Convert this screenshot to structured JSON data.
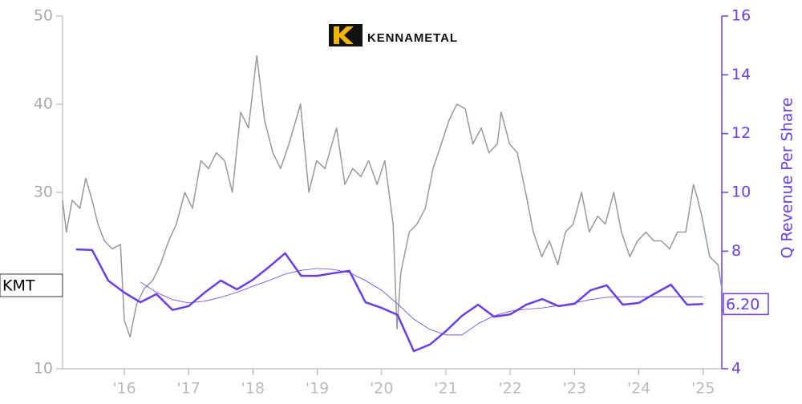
{
  "chart_data": {
    "type": "line",
    "logo_text": "KENNAMETAL",
    "ticker": "KMT",
    "y2label": "Q Revenue Per Share",
    "xlim": [
      2015.04,
      2025.29
    ],
    "xticks": [
      {
        "value": 2016,
        "label": "'16"
      },
      {
        "value": 2017,
        "label": "'17"
      },
      {
        "value": 2018,
        "label": "'18"
      },
      {
        "value": 2019,
        "label": "'19"
      },
      {
        "value": 2020,
        "label": "'20"
      },
      {
        "value": 2021,
        "label": "'21"
      },
      {
        "value": 2022,
        "label": "'22"
      },
      {
        "value": 2023,
        "label": "'23"
      },
      {
        "value": 2024,
        "label": "'24"
      },
      {
        "value": 2025,
        "label": "'25"
      }
    ],
    "ylim": [
      10,
      50
    ],
    "yticks": [
      10,
      20,
      30,
      40,
      50
    ],
    "y2lim": [
      4,
      16
    ],
    "y2ticks": [
      4,
      6,
      8,
      10,
      12,
      14,
      16
    ],
    "series": [
      {
        "color": "#999999",
        "width": 1.5,
        "axis": "y",
        "x": [
          2015.04,
          2015.1,
          2015.19,
          2015.31,
          2015.4,
          2015.5,
          2015.59,
          2015.69,
          2015.81,
          2015.94,
          2016.0,
          2016.09,
          2016.19,
          2016.31,
          2016.44,
          2016.56,
          2016.69,
          2016.81,
          2016.94,
          2017.06,
          2017.19,
          2017.31,
          2017.43,
          2017.56,
          2017.68,
          2017.81,
          2017.93,
          2018.06,
          2018.18,
          2018.31,
          2018.43,
          2018.56,
          2018.74,
          2018.87,
          2018.99,
          2019.12,
          2019.3,
          2019.43,
          2019.55,
          2019.68,
          2019.8,
          2019.93,
          2020.05,
          2020.18,
          2020.24,
          2020.3,
          2020.43,
          2020.55,
          2020.68,
          2020.8,
          2020.93,
          2021.05,
          2021.17,
          2021.3,
          2021.42,
          2021.55,
          2021.67,
          2021.8,
          2021.86,
          2021.99,
          2022.11,
          2022.24,
          2022.36,
          2022.49,
          2022.61,
          2022.74,
          2022.86,
          2022.98,
          2023.11,
          2023.23,
          2023.36,
          2023.48,
          2023.61,
          2023.73,
          2023.86,
          2023.98,
          2024.11,
          2024.23,
          2024.35,
          2024.48,
          2024.6,
          2024.73,
          2024.85,
          2024.92,
          2024.98,
          2025.1,
          2025.23,
          2025.29
        ],
        "values": [
          29.1,
          25.5,
          29.1,
          28.2,
          31.6,
          29.1,
          26.4,
          24.5,
          23.6,
          24.1,
          15.5,
          13.6,
          17.3,
          19.1,
          20.0,
          21.8,
          24.5,
          26.4,
          30.0,
          28.2,
          33.6,
          32.7,
          34.5,
          33.6,
          30.0,
          39.1,
          37.3,
          45.5,
          38.2,
          34.5,
          32.7,
          35.5,
          40.0,
          30.0,
          33.6,
          32.7,
          37.3,
          30.9,
          32.7,
          31.8,
          33.6,
          30.9,
          33.6,
          26.4,
          14.5,
          20.9,
          25.5,
          26.4,
          28.2,
          32.7,
          35.5,
          38.2,
          40.0,
          39.5,
          35.5,
          37.3,
          34.5,
          35.5,
          39.1,
          35.5,
          34.5,
          30.0,
          25.5,
          22.7,
          24.5,
          21.8,
          25.5,
          26.4,
          30.0,
          25.5,
          27.3,
          26.4,
          30.0,
          25.5,
          22.7,
          24.5,
          25.5,
          24.5,
          24.5,
          23.6,
          25.5,
          25.5,
          30.9,
          29.1,
          27.3,
          22.7,
          21.8,
          19.1
        ]
      },
      {
        "color": "#6a3de8",
        "width": 2.5,
        "axis": "y2",
        "x": [
          2015.25,
          2015.5,
          2015.75,
          2016.0,
          2016.25,
          2016.5,
          2016.75,
          2017.0,
          2017.25,
          2017.5,
          2017.75,
          2018.0,
          2018.25,
          2018.5,
          2018.75,
          2019.0,
          2019.25,
          2019.5,
          2019.75,
          2020.0,
          2020.25,
          2020.5,
          2020.75,
          2021.0,
          2021.25,
          2021.5,
          2021.75,
          2022.0,
          2022.25,
          2022.5,
          2022.75,
          2023.0,
          2023.25,
          2023.5,
          2023.75,
          2024.0,
          2024.25,
          2024.5,
          2024.75,
          2025.0
        ],
        "values": [
          8.06,
          8.04,
          7.0,
          6.59,
          6.26,
          6.54,
          6.0,
          6.13,
          6.59,
          7.0,
          6.7,
          7.03,
          7.46,
          7.93,
          7.16,
          7.16,
          7.25,
          7.33,
          6.26,
          6.07,
          5.83,
          4.6,
          4.82,
          5.28,
          5.8,
          6.18,
          5.77,
          5.85,
          6.18,
          6.37,
          6.13,
          6.21,
          6.67,
          6.84,
          6.18,
          6.24,
          6.56,
          6.86,
          6.18,
          6.2
        ],
        "value_labels": [
          null,
          null,
          null,
          null,
          null,
          null,
          null,
          null,
          null,
          null,
          null,
          null,
          null,
          null,
          null,
          null,
          null,
          null,
          null,
          null,
          null,
          null,
          null,
          null,
          null,
          null,
          null,
          null,
          null,
          null,
          null,
          null,
          null,
          null,
          null,
          null,
          null,
          null,
          null,
          "6.20"
        ]
      },
      {
        "color": "#6a3de8",
        "width": 0.8,
        "axis": "y2",
        "x": [
          2016.25,
          2016.5,
          2016.75,
          2017.0,
          2017.25,
          2017.5,
          2017.75,
          2018.0,
          2018.25,
          2018.5,
          2018.75,
          2019.0,
          2019.25,
          2019.5,
          2019.75,
          2020.0,
          2020.25,
          2020.5,
          2020.75,
          2021.0,
          2021.25,
          2021.5,
          2021.75,
          2022.0,
          2022.25,
          2022.5,
          2022.75,
          2023.0,
          2023.25,
          2023.5,
          2023.75,
          2024.0,
          2024.25,
          2024.5,
          2024.75,
          2025.0
        ],
        "values": [
          6.95,
          6.6,
          6.35,
          6.24,
          6.3,
          6.43,
          6.6,
          6.81,
          7.0,
          7.22,
          7.35,
          7.41,
          7.38,
          7.27,
          7.0,
          6.67,
          6.2,
          5.69,
          5.34,
          5.15,
          5.15,
          5.53,
          5.8,
          5.96,
          6.02,
          6.07,
          6.15,
          6.24,
          6.35,
          6.43,
          6.45,
          6.45,
          6.45,
          6.45,
          6.45,
          6.45
        ]
      }
    ]
  }
}
